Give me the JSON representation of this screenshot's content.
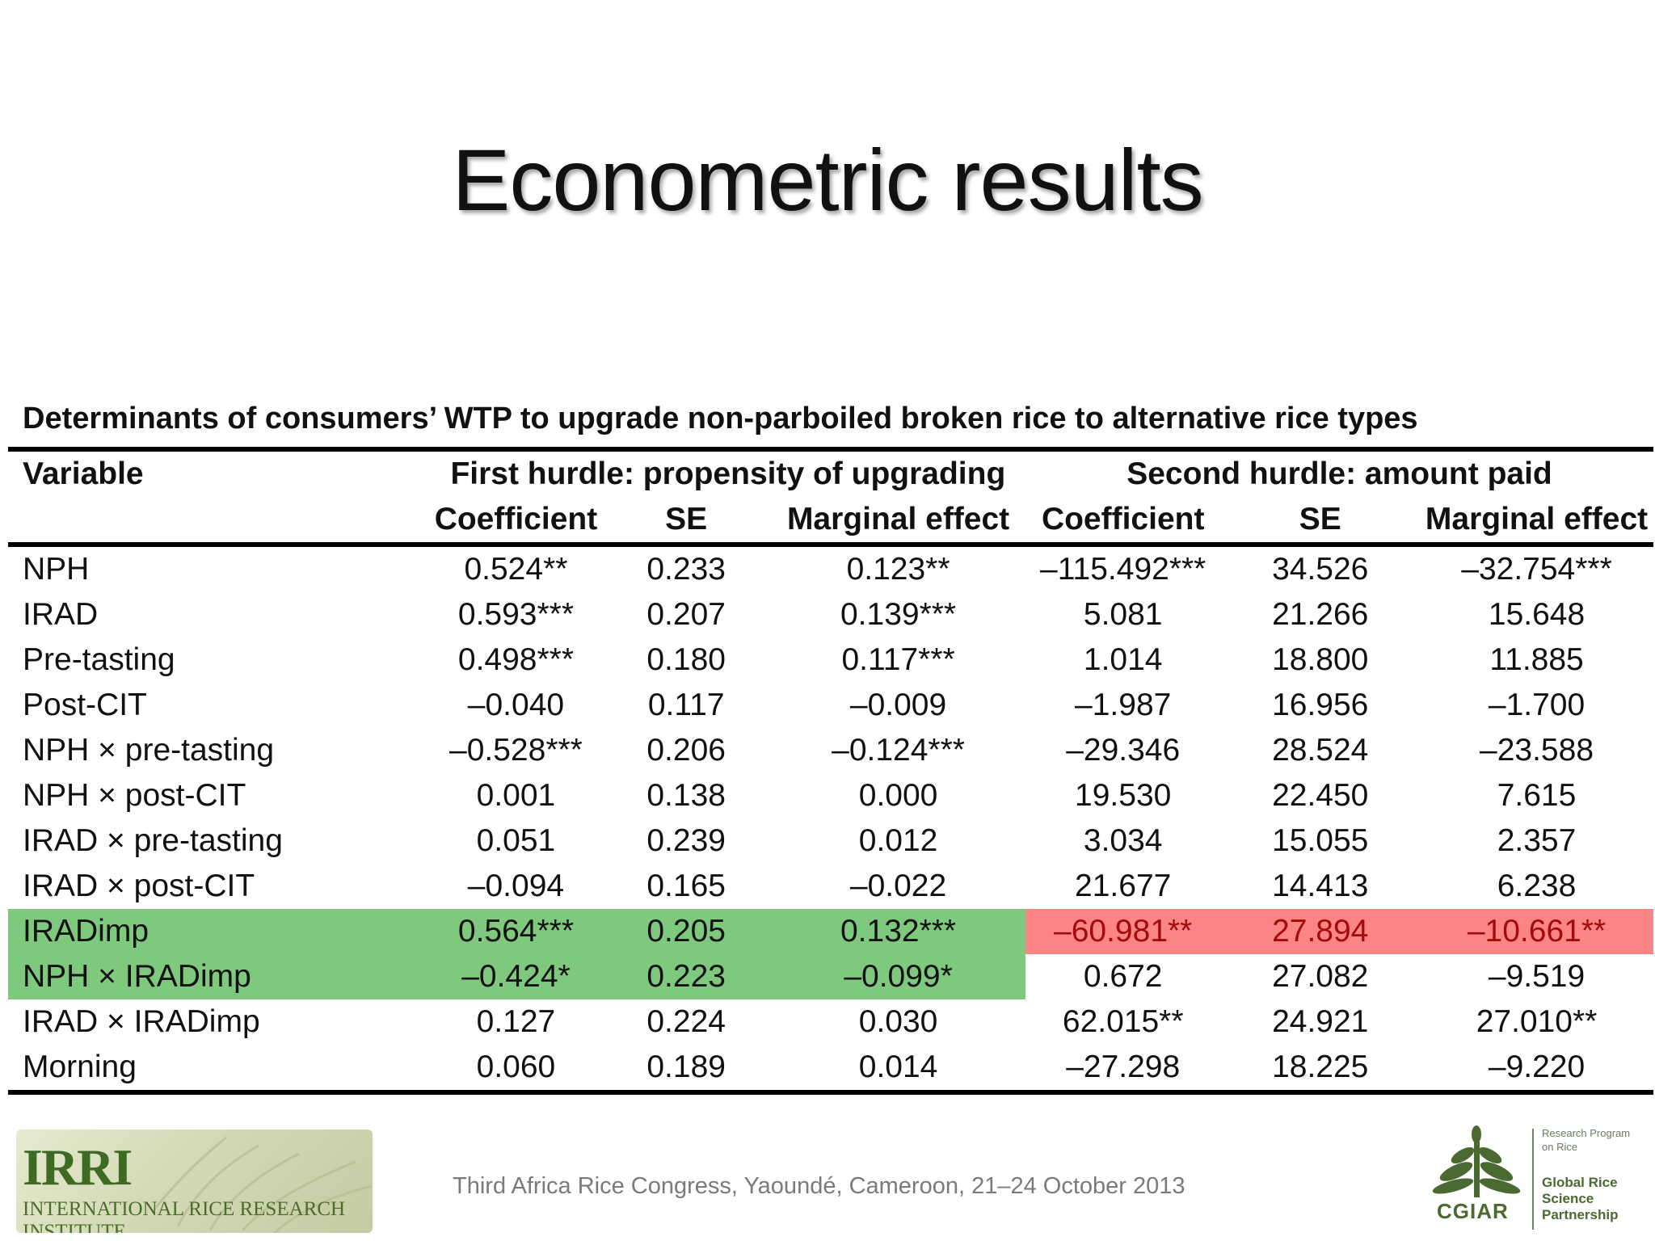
{
  "slide": {
    "title": "Econometric results",
    "caption": "Determinants of consumers’ WTP to upgrade non-parboiled broken rice to alternative rice types",
    "footer": "Third Africa Rice Congress, Yaoundé, Cameroon, 21–24 October 2013"
  },
  "table": {
    "variable_header": "Variable",
    "group1": "First hurdle: propensity of upgrading",
    "group2": "Second hurdle: amount paid",
    "subheaders": [
      "Coefficient",
      "SE",
      "Marginal effect",
      "Coefficient",
      "SE",
      "Marginal effect"
    ],
    "rows": [
      {
        "variable": "NPH",
        "values": [
          "0.524**",
          "0.233",
          "0.123**",
          "–115.492***",
          "34.526",
          "–32.754***"
        ]
      },
      {
        "variable": "IRAD",
        "values": [
          "0.593***",
          "0.207",
          "0.139***",
          "5.081",
          "21.266",
          "15.648"
        ]
      },
      {
        "variable": "Pre-tasting",
        "values": [
          "0.498***",
          "0.180",
          "0.117***",
          "1.014",
          "18.800",
          "11.885"
        ]
      },
      {
        "variable": "Post-CIT",
        "values": [
          "–0.040",
          "0.117",
          "–0.009",
          "–1.987",
          "16.956",
          "–1.700"
        ]
      },
      {
        "variable": "NPH × pre-tasting",
        "values": [
          "–0.528***",
          "0.206",
          "–0.124***",
          "–29.346",
          "28.524",
          "–23.588"
        ]
      },
      {
        "variable": "NPH × post-CIT",
        "values": [
          "0.001",
          "0.138",
          "0.000",
          "19.530",
          "22.450",
          "7.615"
        ]
      },
      {
        "variable": "IRAD × pre-tasting",
        "values": [
          "0.051",
          "0.239",
          "0.012",
          "3.034",
          "15.055",
          "2.357"
        ]
      },
      {
        "variable": "IRAD × post-CIT",
        "values": [
          "–0.094",
          "0.165",
          "–0.022",
          "21.677",
          "14.413",
          "6.238"
        ]
      },
      {
        "variable": "IRADimp",
        "values": [
          "0.564***",
          "0.205",
          "0.132***",
          "–60.981**",
          "27.894",
          "–10.661**"
        ]
      },
      {
        "variable": "NPH × IRADimp",
        "values": [
          "–0.424*",
          "0.223",
          "–0.099*",
          "0.672",
          "27.082",
          "–9.519"
        ]
      },
      {
        "variable": "IRAD × IRADimp",
        "values": [
          "0.127",
          "0.224",
          "0.030",
          "62.015**",
          "24.921",
          "27.010**"
        ]
      },
      {
        "variable": "Morning",
        "values": [
          "0.060",
          "0.189",
          "0.014",
          "–27.298",
          "18.225",
          "–9.220"
        ]
      }
    ],
    "highlight_colors": {
      "green": "#7ec97e",
      "red": "#fb8585"
    }
  },
  "logos": {
    "irri_big": "IRRI",
    "irri_small": "INTERNATIONAL RICE RESEARCH INSTITUTE",
    "cgiar_word": "CGIAR",
    "cgiar_program": "Research Program on Rice",
    "cgiar_partnership": "Global Rice Science Partnership"
  }
}
